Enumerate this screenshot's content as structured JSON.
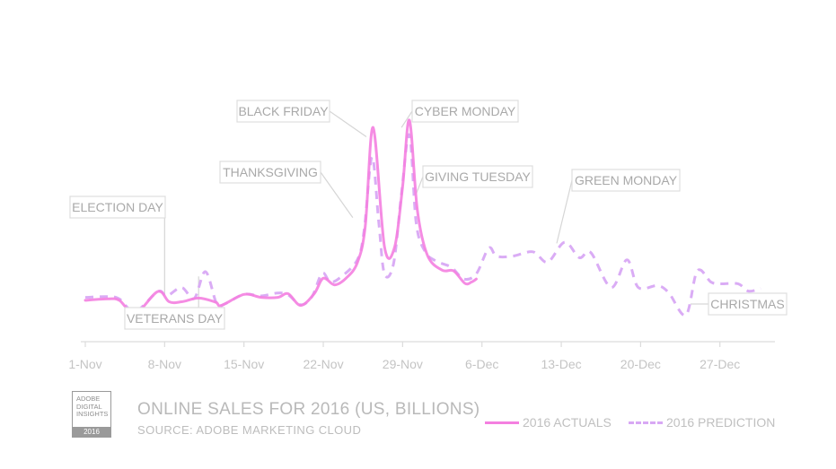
{
  "chart_data": {
    "type": "line",
    "title": "ONLINE SALES FOR 2016 (US, BILLIONS)",
    "subtitle": "SOURCE: ADOBE MARKETING CLOUD",
    "x_tick_labels": [
      "1-Nov",
      "8-Nov",
      "15-Nov",
      "22-Nov",
      "29-Nov",
      "6-Dec",
      "13-Dec",
      "20-Dec",
      "27-Dec"
    ],
    "x_range_days": [
      0,
      61
    ],
    "y_axis_labels": "none",
    "grid": false,
    "legend": "bottom-right",
    "series": [
      {
        "name": "2016 ACTUALS",
        "style": "solid",
        "color": "#f47fe0",
        "points": [
          [
            0,
            1.1
          ],
          [
            2,
            1.14
          ],
          [
            3,
            1.1
          ],
          [
            4.4,
            0.74
          ],
          [
            6.4,
            1.34
          ],
          [
            7.4,
            1.06
          ],
          [
            8.5,
            1.06
          ],
          [
            10,
            1.16
          ],
          [
            11.5,
            1.05
          ],
          [
            12,
            0.96
          ],
          [
            14,
            1.26
          ],
          [
            15.5,
            1.18
          ],
          [
            17,
            1.18
          ],
          [
            17.9,
            1.28
          ],
          [
            19,
            0.96
          ],
          [
            20.2,
            1.28
          ],
          [
            21,
            1.7
          ],
          [
            22,
            1.52
          ],
          [
            23,
            1.7
          ],
          [
            24,
            2.12
          ],
          [
            24.7,
            3.1
          ],
          [
            25.4,
            5.8
          ],
          [
            26.4,
            2.55
          ],
          [
            27.3,
            2.55
          ],
          [
            28.0,
            4.2
          ],
          [
            28.6,
            6.0
          ],
          [
            29.3,
            3.55
          ],
          [
            30.2,
            2.32
          ],
          [
            31.5,
            1.92
          ],
          [
            32.5,
            1.9
          ],
          [
            33.5,
            1.56
          ],
          [
            34.1,
            1.6
          ],
          [
            34.5,
            1.68
          ]
        ]
      },
      {
        "name": "2016 PREDICTION",
        "style": "dashed",
        "color": "#d8a8f4",
        "points": [
          [
            0,
            1.18
          ],
          [
            2,
            1.2
          ],
          [
            3,
            1.14
          ],
          [
            4.4,
            0.8
          ],
          [
            6.4,
            1.34
          ],
          [
            7.2,
            1.22
          ],
          [
            8.5,
            1.45
          ],
          [
            9.6,
            1.15
          ],
          [
            10.6,
            1.88
          ],
          [
            11.6,
            1.0
          ],
          [
            12.3,
            1.0
          ],
          [
            14,
            1.26
          ],
          [
            15.5,
            1.22
          ],
          [
            17,
            1.3
          ],
          [
            17.9,
            1.25
          ],
          [
            19,
            0.98
          ],
          [
            20,
            1.2
          ],
          [
            20.9,
            1.84
          ],
          [
            21.6,
            1.6
          ],
          [
            22.5,
            1.72
          ],
          [
            24,
            2.2
          ],
          [
            24.6,
            3.0
          ],
          [
            25.3,
            5.0
          ],
          [
            25.9,
            3.2
          ],
          [
            26.4,
            1.82
          ],
          [
            27.2,
            2.1
          ],
          [
            27.9,
            4.0
          ],
          [
            28.6,
            5.6
          ],
          [
            29.2,
            3.2
          ],
          [
            30.0,
            2.42
          ],
          [
            31.0,
            2.16
          ],
          [
            32.3,
            2.0
          ],
          [
            33.4,
            1.68
          ],
          [
            34.5,
            1.82
          ],
          [
            35.6,
            2.52
          ],
          [
            36.3,
            2.3
          ],
          [
            37.7,
            2.3
          ],
          [
            39.5,
            2.42
          ],
          [
            40.8,
            2.14
          ],
          [
            42.3,
            2.68
          ],
          [
            43.6,
            2.26
          ],
          [
            44.6,
            2.4
          ],
          [
            46.4,
            1.45
          ],
          [
            47.8,
            2.2
          ],
          [
            48.8,
            1.45
          ],
          [
            50.5,
            1.5
          ],
          [
            51.5,
            1.3
          ],
          [
            53,
            0.7
          ],
          [
            54,
            1.9
          ],
          [
            55.2,
            1.6
          ],
          [
            56,
            1.55
          ],
          [
            57.6,
            1.55
          ],
          [
            58.5,
            1.35
          ],
          [
            59.6,
            1.42
          ]
        ]
      }
    ],
    "annotations": [
      {
        "label": "ELECTION DAY",
        "day": 7
      },
      {
        "label": "VETERANS DAY",
        "day": 10
      },
      {
        "label": "THANKSGIVING",
        "day": 23.6
      },
      {
        "label": "BLACK FRIDAY",
        "day": 24.6
      },
      {
        "label": "CYBER MONDAY",
        "day": 27.6
      },
      {
        "label": "GIVING TUESDAY",
        "day": 28.8
      },
      {
        "label": "GREEN MONDAY",
        "day": 41.6
      },
      {
        "label": "CHRISTMAS",
        "day": 54
      }
    ]
  },
  "footer": {
    "title": "ONLINE SALES FOR 2016 (US, BILLIONS)",
    "source": "SOURCE: ADOBE MARKETING CLOUD",
    "badge": {
      "line1": "ADOBE",
      "line2": "DIGITAL",
      "line3": "INSIGHTS",
      "year": "2016"
    }
  },
  "legend": {
    "actuals": "2016 ACTUALS",
    "prediction": "2016 PREDICTION"
  },
  "colors": {
    "actuals": "#f47fe0",
    "prediction": "#d8a8f4",
    "axis": "#d9d9d9",
    "annotation_text": "#a9a9a9"
  }
}
